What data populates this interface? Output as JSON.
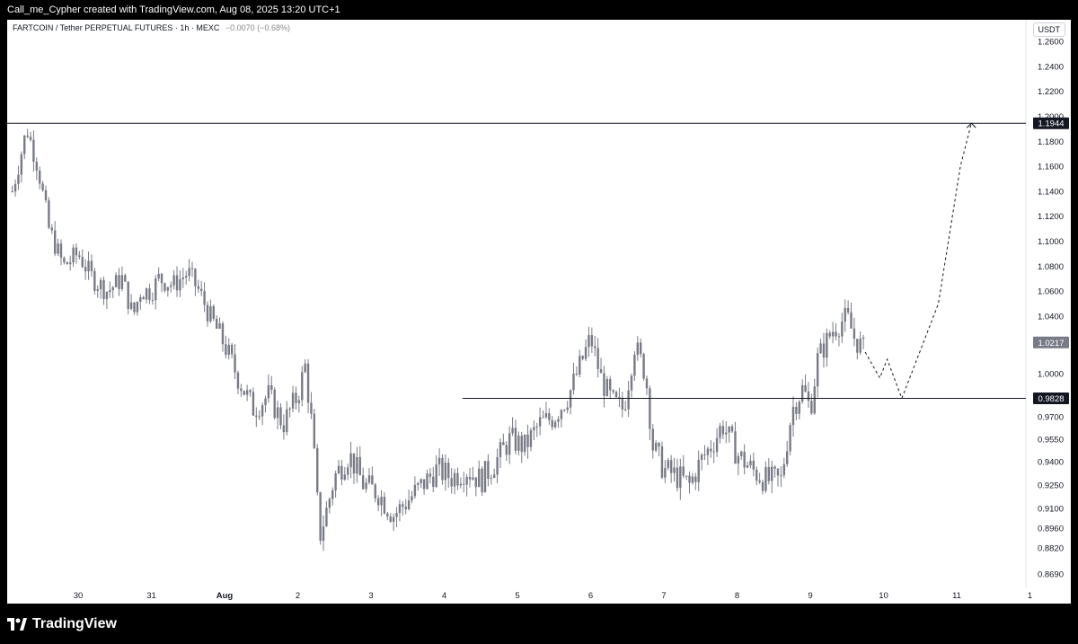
{
  "header": {
    "attribution": "Call_me_Cypher created with TradingView.com, Aug 08, 2025 13:20 UTC+1"
  },
  "symbol": {
    "title": "FARTCOIN / Tether PERPETUAL FUTURES · 1h · MEXC",
    "change": "−0.0070 (−0.68%)"
  },
  "currency_button": "USDT",
  "footer": {
    "brand": "TradingView"
  },
  "colors": {
    "candle": "#787b86",
    "background": "#ffffff",
    "label_dark": "#131722",
    "label_current": "#787b86"
  },
  "chart_data": {
    "type": "candlestick",
    "timeframe": "1h",
    "y_ticks": [
      "1.2600",
      "1.2400",
      "1.2200",
      "1.2000",
      "1.1800",
      "1.1600",
      "1.1400",
      "1.1200",
      "1.1000",
      "1.0800",
      "1.0600",
      "1.0400",
      "1.0000",
      "0.9700",
      "0.9550",
      "0.9400",
      "0.9250",
      "0.9100",
      "0.8960",
      "0.8820",
      "0.8690"
    ],
    "x_ticks": [
      "30",
      "31",
      "Aug",
      "2",
      "3",
      "4",
      "5",
      "6",
      "7",
      "8",
      "9",
      "10",
      "11",
      "1"
    ],
    "close_path": [
      [
        29.1,
        1.14
      ],
      [
        29.2,
        1.165
      ],
      [
        29.3,
        1.19
      ],
      [
        29.45,
        1.16
      ],
      [
        29.6,
        1.11
      ],
      [
        29.8,
        1.08
      ],
      [
        30.0,
        1.09
      ],
      [
        30.2,
        1.07
      ],
      [
        30.4,
        1.06
      ],
      [
        30.6,
        1.07
      ],
      [
        30.75,
        1.04
      ],
      [
        30.85,
        1.06
      ],
      [
        31.0,
        1.06
      ],
      [
        31.1,
        1.07
      ],
      [
        31.3,
        1.065
      ],
      [
        31.5,
        1.075
      ],
      [
        31.65,
        1.06
      ],
      [
        31.8,
        1.04
      ],
      [
        32.0,
        1.02
      ],
      [
        32.2,
        0.995
      ],
      [
        32.4,
        0.975
      ],
      [
        32.6,
        0.985
      ],
      [
        32.8,
        0.965
      ],
      [
        33.0,
        0.985
      ],
      [
        33.1,
        1.005
      ],
      [
        33.2,
        0.96
      ],
      [
        33.3,
        0.89
      ],
      [
        33.5,
        0.93
      ],
      [
        33.7,
        0.945
      ],
      [
        33.9,
        0.925
      ],
      [
        34.1,
        0.92
      ],
      [
        34.3,
        0.905
      ],
      [
        34.5,
        0.915
      ],
      [
        34.7,
        0.925
      ],
      [
        34.9,
        0.935
      ],
      [
        35.1,
        0.93
      ],
      [
        35.3,
        0.935
      ],
      [
        35.5,
        0.928
      ],
      [
        35.7,
        0.94
      ],
      [
        35.9,
        0.955
      ],
      [
        36.1,
        0.95
      ],
      [
        36.3,
        0.965
      ],
      [
        36.5,
        0.97
      ],
      [
        36.7,
        0.985
      ],
      [
        36.85,
        1.005
      ],
      [
        37.0,
        1.025
      ],
      [
        37.15,
        0.995
      ],
      [
        37.3,
        0.98
      ],
      [
        37.45,
        0.975
      ],
      [
        37.6,
        1.02
      ],
      [
        37.75,
        1.0
      ],
      [
        37.85,
        0.95
      ],
      [
        38.0,
        0.935
      ],
      [
        38.2,
        0.93
      ],
      [
        38.35,
        0.925
      ],
      [
        38.5,
        0.94
      ],
      [
        38.7,
        0.955
      ],
      [
        38.8,
        0.965
      ],
      [
        39.0,
        0.945
      ],
      [
        39.2,
        0.935
      ],
      [
        39.4,
        0.928
      ],
      [
        39.6,
        0.928
      ],
      [
        39.75,
        0.975
      ],
      [
        39.9,
        0.99
      ],
      [
        40.0,
        0.975
      ],
      [
        40.1,
        1.01
      ],
      [
        40.3,
        1.03
      ],
      [
        40.5,
        1.04
      ],
      [
        40.6,
        1.025
      ],
      [
        40.75,
        1.015
      ]
    ],
    "projection": [
      [
        40.75,
        1.015
      ],
      [
        40.95,
        0.997
      ],
      [
        41.05,
        1.01
      ],
      [
        41.25,
        0.9828
      ],
      [
        41.75,
        1.05
      ],
      [
        42.05,
        1.16
      ],
      [
        42.2,
        1.1944
      ]
    ],
    "levels": [
      {
        "price": 1.1944,
        "label": "1.1944",
        "style": "dark"
      },
      {
        "price": 0.9828,
        "label": "0.9828",
        "style": "dark"
      },
      {
        "price": 1.0217,
        "label": "1.0217",
        "style": "current"
      }
    ]
  }
}
